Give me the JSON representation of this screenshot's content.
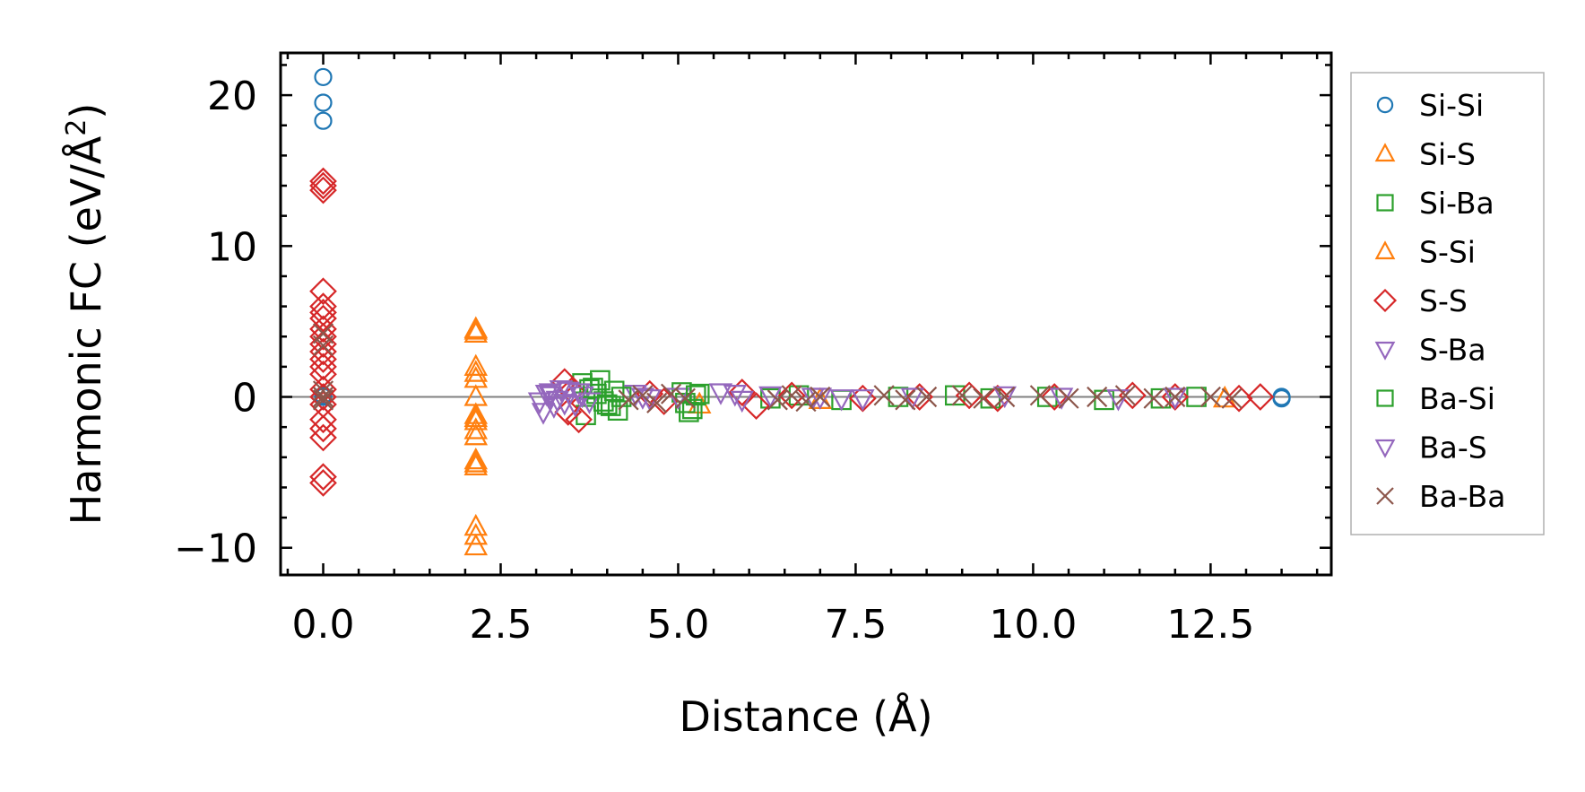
{
  "chart_data": {
    "type": "scatter",
    "title": "",
    "xlabel": "Distance (Å)",
    "ylabel_prefix": "Harmonic FC (eV/Å",
    "ylabel_sup": "2",
    "ylabel_suffix": ")",
    "xlim": [
      -0.6,
      14.2
    ],
    "ylim": [
      -11.8,
      22.8
    ],
    "xticks": [
      0.0,
      2.5,
      5.0,
      7.5,
      10.0,
      12.5
    ],
    "xtick_labels": [
      "0.0",
      "2.5",
      "5.0",
      "7.5",
      "10.0",
      "12.5"
    ],
    "yticks": [
      -10,
      0,
      10,
      20
    ],
    "ytick_labels": [
      "−10",
      "0",
      "10",
      "20"
    ],
    "x_minor_step": 0.5,
    "y_minor_step": 2,
    "zero_line": true,
    "legend_position": "outside-right",
    "series": [
      {
        "name": "Si-Si",
        "marker": "circle",
        "color": "#1f77b4",
        "x": [
          0.0,
          0.0,
          0.0,
          0.0,
          0.0,
          13.5,
          13.5
        ],
        "y": [
          21.2,
          19.5,
          18.3,
          0.0,
          0.1,
          0.0,
          -0.1
        ]
      },
      {
        "name": "Si-S",
        "marker": "triangle-up",
        "color": "#ff7f0e",
        "x": [
          2.15,
          2.15,
          2.15,
          2.15,
          2.15,
          2.15,
          2.15,
          2.15,
          2.15,
          2.15,
          2.15,
          2.15,
          2.15,
          2.15,
          5.3,
          7.0,
          12.7
        ],
        "y": [
          4.5,
          4.2,
          2.0,
          1.2,
          -1.2,
          -1.6,
          -2.2,
          -2.6,
          -4.2,
          -4.6,
          -8.6,
          -9.2,
          -9.9,
          0.0,
          -0.5,
          -0.2,
          -0.1
        ]
      },
      {
        "name": "Si-Ba",
        "marker": "square",
        "color": "#2ca02c",
        "x": [
          3.65,
          3.75,
          3.85,
          3.95,
          4.05,
          4.15,
          3.7,
          3.9,
          4.1,
          5.05,
          5.1,
          5.2,
          5.3,
          5.15,
          6.3,
          6.7,
          7.3,
          8.1,
          8.9,
          9.4,
          10.2,
          11.0,
          11.8,
          12.3
        ],
        "y": [
          0.9,
          0.5,
          0.2,
          -0.3,
          -0.6,
          -0.9,
          -1.2,
          1.1,
          0.4,
          0.3,
          -0.4,
          -0.8,
          0.2,
          -1.0,
          -0.1,
          0.1,
          -0.2,
          0.0,
          0.1,
          -0.1,
          0.0,
          -0.2,
          -0.1,
          0.0
        ]
      },
      {
        "name": "S-Si",
        "marker": "triangle-up",
        "color": "#ff7f0e",
        "x": [
          2.15,
          2.15,
          2.15,
          2.15
        ],
        "y": [
          4.4,
          1.6,
          -1.4,
          -4.4
        ]
      },
      {
        "name": "S-S",
        "marker": "diamond",
        "color": "#d62728",
        "x": [
          0.0,
          0.0,
          0.0,
          0.0,
          0.0,
          0.0,
          0.0,
          0.0,
          0.0,
          0.0,
          0.0,
          0.0,
          0.0,
          0.0,
          0.0,
          0.0,
          0.0,
          0.0,
          0.0,
          0.0,
          0.0,
          0.0,
          3.4,
          3.5,
          3.6,
          3.45,
          4.6,
          4.8,
          5.9,
          6.1,
          6.6,
          7.6,
          8.4,
          9.1,
          9.5,
          10.3,
          11.4,
          12.0,
          12.9,
          13.2
        ],
        "y": [
          14.3,
          14.0,
          13.7,
          7.0,
          6.0,
          5.6,
          5.2,
          4.5,
          4.0,
          3.5,
          3.0,
          2.5,
          2.0,
          1.5,
          0.5,
          -0.5,
          -1.5,
          -2.1,
          -2.7,
          -5.3,
          -5.7,
          0.0,
          1.0,
          0.4,
          -1.5,
          -1.0,
          0.2,
          -0.3,
          0.3,
          -0.6,
          0.1,
          -0.1,
          0.0,
          0.1,
          -0.1,
          0.0,
          0.1,
          0.0,
          -0.1,
          0.0
        ]
      },
      {
        "name": "S-Ba",
        "marker": "triangle-down",
        "color": "#9467bd",
        "x": [
          3.05,
          3.15,
          3.25,
          3.35,
          3.1,
          3.2,
          3.3,
          3.45,
          3.55,
          3.65,
          3.75,
          4.4,
          4.6,
          5.0,
          5.6,
          5.9,
          6.3,
          7.0,
          7.6,
          8.3,
          9.6,
          10.4,
          11.2,
          12.0
        ],
        "y": [
          -0.3,
          0.2,
          -0.6,
          0.5,
          -1.0,
          0.3,
          -0.2,
          0.4,
          -0.5,
          0.1,
          -0.3,
          0.2,
          -0.1,
          0.0,
          0.3,
          -0.2,
          0.1,
          0.0,
          -0.1,
          0.0,
          0.1,
          0.0,
          -0.1,
          0.0
        ]
      },
      {
        "name": "Ba-Si",
        "marker": "square",
        "color": "#2ca02c",
        "x": [
          3.8,
          4.0,
          4.2,
          5.25
        ],
        "y": [
          0.6,
          -0.5,
          0.0,
          0.1
        ]
      },
      {
        "name": "Ba-S",
        "marker": "triangle-down",
        "color": "#9467bd",
        "x": [
          3.2,
          3.4,
          3.6,
          4.5,
          5.8,
          6.9,
          7.3
        ],
        "y": [
          0.1,
          -0.4,
          0.3,
          0.0,
          0.2,
          0.0,
          -0.1
        ]
      },
      {
        "name": "Ba-Ba",
        "marker": "x",
        "color": "#8c564b",
        "x": [
          0.0,
          0.0,
          0.0,
          0.0,
          0.0,
          4.3,
          4.5,
          4.7,
          4.9,
          5.1,
          6.4,
          6.6,
          6.8,
          7.0,
          7.9,
          8.2,
          8.5,
          9.0,
          9.3,
          9.6,
          10.1,
          10.5,
          10.9,
          11.3,
          11.7,
          12.0,
          12.5,
          12.8
        ],
        "y": [
          4.2,
          3.4,
          0.4,
          -0.2,
          0.0,
          -0.2,
          0.1,
          -0.4,
          0.2,
          -0.1,
          -0.2,
          0.1,
          -0.3,
          0.0,
          0.1,
          -0.2,
          0.0,
          0.1,
          -0.1,
          0.0,
          0.1,
          -0.1,
          0.0,
          0.1,
          -0.1,
          0.0,
          0.0,
          -0.1
        ]
      }
    ]
  }
}
